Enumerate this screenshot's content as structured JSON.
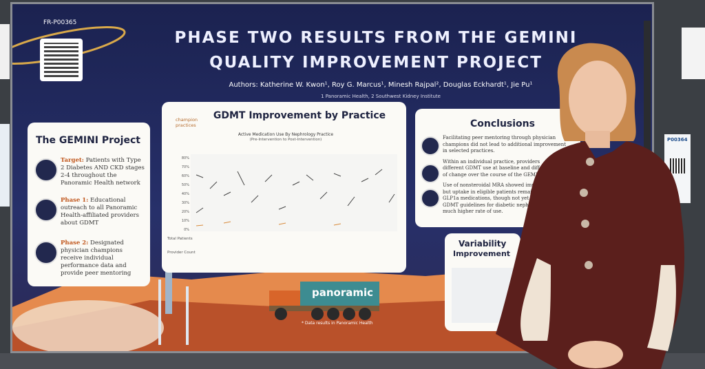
{
  "poster": {
    "code": "FR-P00365",
    "title_line1": "PHASE TWO RESULTS FROM THE GEMINI",
    "title_line2": "QUALITY IMPROVEMENT PROJECT",
    "authors": "Authors: Katherine W. Kwon¹, Roy G. Marcus¹, Minesh Rajpal², Douglas Eckhardt¹, Jie Pu¹",
    "affiliations": "1 Panoramic Health, 2 Southwest Kidney Institute"
  },
  "gemini_project": {
    "title": "The GEMINI Project",
    "items": [
      {
        "label": "Target:",
        "text": "Patients with Type 2 Diabetes AND CKD stages 2-4 throughout the Panoramic Health network"
      },
      {
        "label": "Phase 1:",
        "text": "Educational outreach to all Panoramic Health-affiliated providers about GDMT"
      },
      {
        "label": "Phase 2:",
        "text": "Designated physician champions receive individual performance data and provide peer mentoring"
      }
    ]
  },
  "gdmt": {
    "title": "GDMT Improvement by Practice",
    "legend": "champion practices",
    "chart_title": "Active Medication Use By Nephrology Practice",
    "chart_subtitle": "(Pre-Intervention to Post-Intervention)",
    "y_labels": [
      "80%",
      "70%",
      "60%",
      "50%",
      "40%",
      "30%",
      "20%",
      "10%",
      "0%"
    ],
    "row_labels": [
      "Total Patients",
      "Provider Count"
    ]
  },
  "conclusions": {
    "title": "Conclusions",
    "lines": [
      "Facilitating peer mentoring through physician",
      "champions did not lead to additional improvement",
      "in selected practices.",
      "Within an individual practice, providers",
      "different GDMT use at baseline and diff",
      "of change over the course of the GEMIN",
      "Use of nonsteroidal MRA showed impr",
      "but uptake in eligible patients remain",
      "GLP1a medications, though not yet in",
      "GDMT guidelines for diabetic nephro",
      "much higher rate of use."
    ]
  },
  "variability": {
    "line1": "Variability",
    "line2": "Improvement"
  },
  "truck_label": "panoramic",
  "footnote": "* Data results in Panoramic Health",
  "neighbor_poster": {
    "code": "P00364"
  }
}
